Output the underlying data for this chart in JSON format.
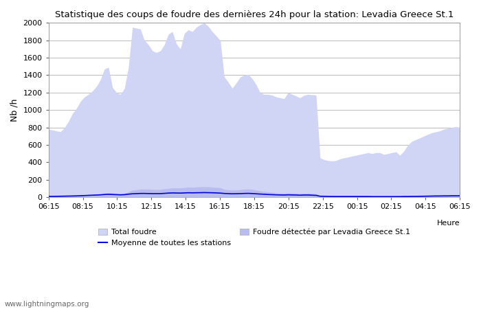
{
  "title": "Statistique des coups de foudre des dernières 24h pour la station: Levadia Greece St.1",
  "ylabel": "Nb /h",
  "xlabel": "Heure",
  "watermark": "www.lightningmaps.org",
  "ylim": [
    0,
    2000
  ],
  "yticks": [
    0,
    200,
    400,
    600,
    800,
    1000,
    1200,
    1400,
    1600,
    1800,
    2000
  ],
  "xtick_labels": [
    "06:15",
    "08:15",
    "10:15",
    "12:15",
    "14:15",
    "16:15",
    "18:15",
    "20:15",
    "22:15",
    "00:15",
    "02:15",
    "04:15",
    "06:15"
  ],
  "color_total": "#d0d4f5",
  "color_station": "#b8bcee",
  "color_mean": "#0000dd",
  "background_color": "#ffffff",
  "grid_color": "#bbbbbb",
  "total_foudre": [
    780,
    770,
    760,
    750,
    800,
    870,
    960,
    1020,
    1100,
    1150,
    1180,
    1220,
    1270,
    1350,
    1470,
    1490,
    1260,
    1200,
    1180,
    1250,
    1490,
    1950,
    1940,
    1930,
    1800,
    1750,
    1680,
    1660,
    1680,
    1750,
    1870,
    1900,
    1760,
    1700,
    1880,
    1920,
    1900,
    1950,
    1980,
    2000,
    1960,
    1900,
    1850,
    1800,
    1380,
    1320,
    1250,
    1310,
    1380,
    1400,
    1410,
    1360,
    1290,
    1200,
    1180,
    1180,
    1170,
    1150,
    1140,
    1130,
    1200,
    1180,
    1160,
    1140,
    1170,
    1180,
    1175,
    1170,
    450,
    430,
    420,
    415,
    420,
    440,
    450,
    460,
    470,
    480,
    490,
    500,
    510,
    500,
    510,
    510,
    490,
    500,
    510,
    520,
    480,
    530,
    600,
    640,
    660,
    680,
    700,
    720,
    740,
    750,
    760,
    780,
    790,
    800,
    810,
    800
  ],
  "station_foudre": [
    10,
    10,
    12,
    14,
    15,
    16,
    18,
    20,
    25,
    28,
    30,
    32,
    35,
    38,
    45,
    50,
    48,
    45,
    40,
    45,
    60,
    80,
    85,
    90,
    92,
    90,
    88,
    88,
    88,
    95,
    100,
    105,
    105,
    105,
    110,
    115,
    113,
    115,
    118,
    120,
    118,
    115,
    110,
    108,
    90,
    85,
    80,
    82,
    85,
    90,
    92,
    88,
    80,
    70,
    65,
    60,
    55,
    50,
    48,
    45,
    50,
    48,
    45,
    42,
    45,
    45,
    42,
    40,
    18,
    15,
    14,
    13,
    13,
    13,
    12,
    12,
    12,
    12,
    12,
    12,
    12,
    11,
    11,
    11,
    10,
    10,
    10,
    10,
    10,
    11,
    12,
    13,
    14,
    15,
    16,
    18,
    20,
    22,
    23,
    24,
    25,
    26,
    26,
    26
  ],
  "mean_line": [
    8,
    8,
    9,
    10,
    11,
    12,
    13,
    14,
    16,
    18,
    20,
    22,
    24,
    26,
    30,
    32,
    30,
    28,
    26,
    28,
    34,
    38,
    40,
    42,
    42,
    41,
    40,
    40,
    40,
    43,
    46,
    48,
    47,
    46,
    48,
    50,
    49,
    50,
    51,
    52,
    51,
    50,
    48,
    46,
    42,
    40,
    38,
    39,
    40,
    42,
    43,
    41,
    38,
    35,
    33,
    30,
    28,
    26,
    25,
    24,
    26,
    25,
    24,
    22,
    24,
    24,
    22,
    20,
    10,
    9,
    8,
    7,
    7,
    7,
    7,
    7,
    7,
    7,
    7,
    7,
    7,
    6,
    6,
    6,
    6,
    6,
    6,
    6,
    6,
    7,
    7,
    8,
    8,
    9,
    10,
    11,
    12,
    13,
    13,
    14,
    14,
    15,
    15,
    15
  ]
}
